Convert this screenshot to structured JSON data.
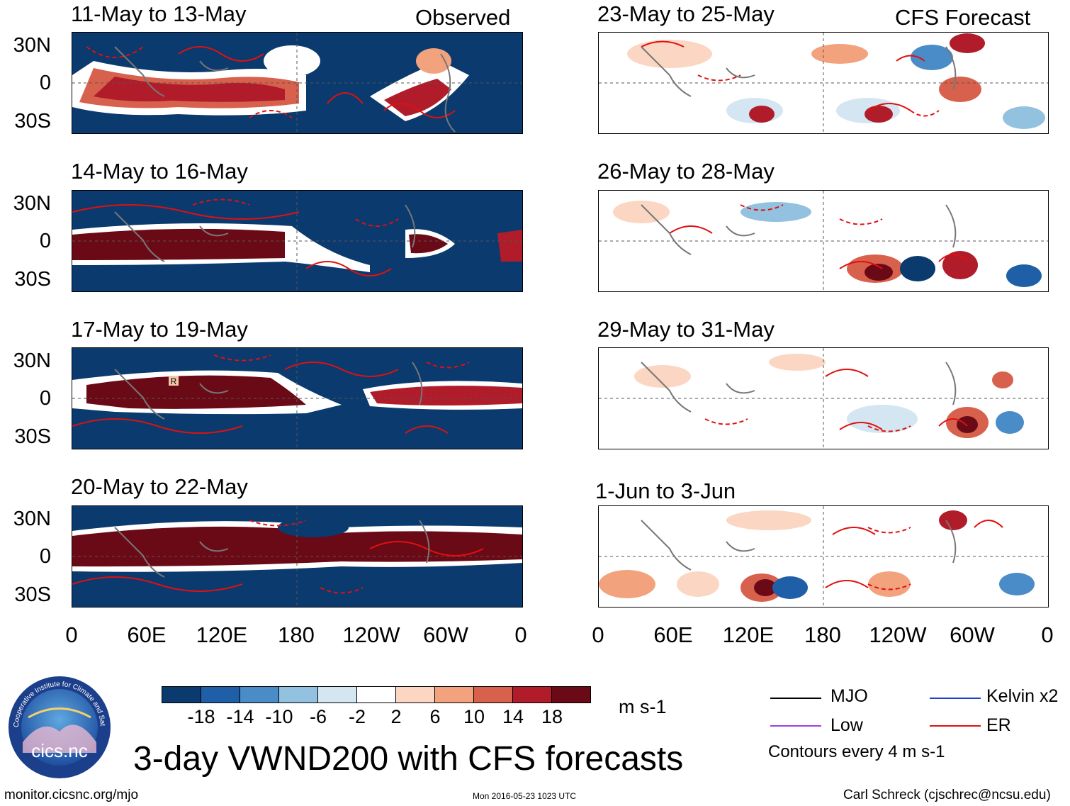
{
  "left_column": {
    "tag": "Observed",
    "panels": [
      {
        "title": "11-May to 13-May"
      },
      {
        "title": "14-May to 16-May"
      },
      {
        "title": "17-May to 19-May"
      },
      {
        "title": "20-May to 22-May"
      }
    ]
  },
  "right_column": {
    "tag": "CFS Forecast",
    "panels": [
      {
        "title": "23-May to 25-May"
      },
      {
        "title": "26-May to 28-May"
      },
      {
        "title": "29-May to 31-May"
      },
      {
        "title": "1-Jun to 3-Jun"
      }
    ]
  },
  "lat_labels": [
    "30N",
    "0",
    "30S"
  ],
  "lon_labels": [
    "0",
    "60E",
    "120E",
    "180",
    "120W",
    "60W",
    "0"
  ],
  "marker_label": "R",
  "colorbar": {
    "colors": [
      "#0a3a6e",
      "#1f5fa8",
      "#4a8cc7",
      "#93c2e0",
      "#d3e6f2",
      "#ffffff",
      "#fbd6c2",
      "#f3a27e",
      "#d8614d",
      "#b01c2a",
      "#6b0a17"
    ],
    "ticks": [
      "-18",
      "-14",
      "-10",
      "-6",
      "-2",
      "2",
      "6",
      "10",
      "14",
      "18"
    ],
    "units": "m s-1"
  },
  "legend": {
    "items": [
      {
        "label": "MJO",
        "color": "#000000"
      },
      {
        "label": "Kelvin x2",
        "color": "#1f3fcc"
      },
      {
        "label": "Low",
        "color": "#a040e0"
      },
      {
        "label": "ER",
        "color": "#e01010"
      }
    ],
    "note": "Contours every 4 m s-1"
  },
  "main_title": "3-day VWND200 with CFS forecasts",
  "logo_text": "cics.nc",
  "logo_ring_text": "Cooperative Institute for Climate and Satellites",
  "footer": {
    "url": "monitor.cicsnc.org/mjo",
    "timestamp": "Mon 2016-05-23 1023 UTC",
    "author": "Carl Schreck (cjschrec@ncsu.edu)"
  }
}
